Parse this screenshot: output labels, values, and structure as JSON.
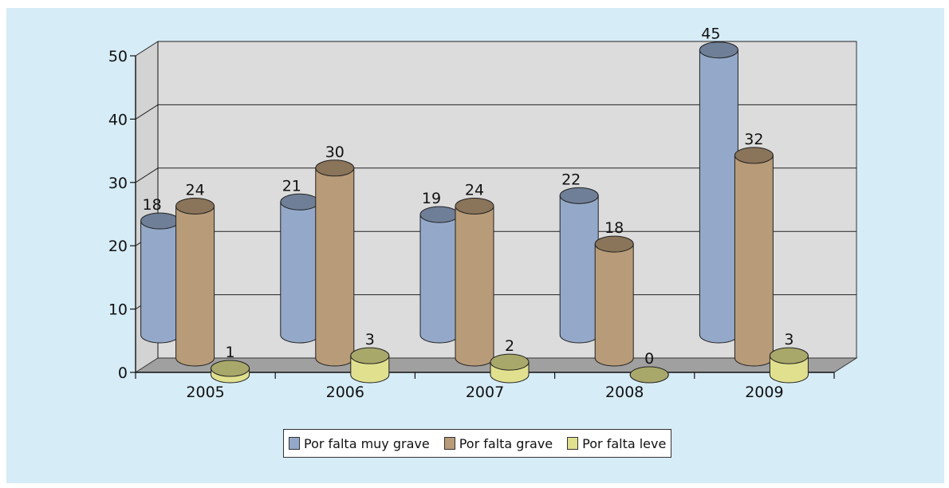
{
  "chart_data": {
    "type": "bar",
    "categories": [
      "2005",
      "2006",
      "2007",
      "2008",
      "2009"
    ],
    "series": [
      {
        "name": "Por falta muy grave",
        "values": [
          18,
          21,
          19,
          22,
          45
        ],
        "color": "#94a9c9"
      },
      {
        "name": "Por falta grave",
        "values": [
          24,
          30,
          24,
          18,
          32
        ],
        "color": "#b89b78"
      },
      {
        "name": "Por falta leve",
        "values": [
          1,
          3,
          2,
          0,
          3
        ],
        "color": "#e1e08e"
      }
    ],
    "y_ticks": [
      "0",
      "10",
      "20",
      "30",
      "40",
      "50"
    ],
    "ylim": [
      0,
      50
    ],
    "grid": true,
    "legend_position": "bottom",
    "style": "3d-cylinder",
    "background": "#d6ecf7",
    "plot_wall": "#dcdcdc",
    "floor": "#a0a0a0"
  }
}
